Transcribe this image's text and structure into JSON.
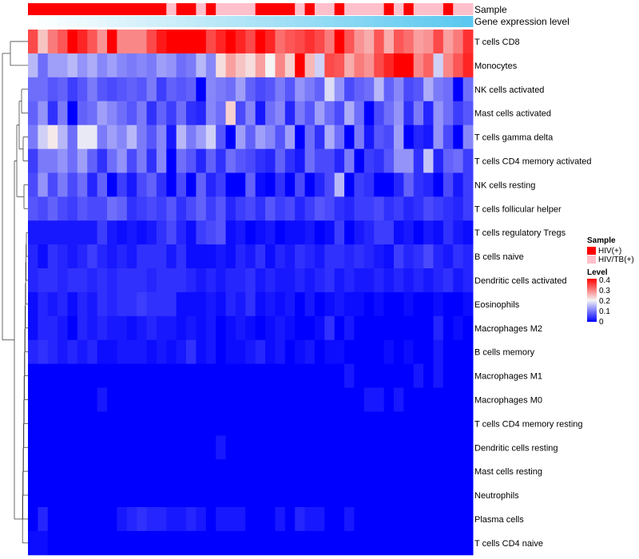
{
  "chart_data": {
    "type": "heatmap",
    "annotation_tracks": [
      "Sample",
      "Gene expression level"
    ],
    "rows": [
      "T cells CD8",
      "Monocytes",
      "NK cells activated",
      "Mast cells activated",
      "T cells gamma delta",
      "T cells CD4 memory activated",
      "NK cells resting",
      "T cells follicular helper",
      "T cells regulatory  Tregs",
      "B cells naive",
      "Dendritic cells activated",
      "Eosinophils",
      "Macrophages M2",
      "B cells memory",
      "Macrophages M1",
      "Macrophages M0",
      "T cells CD4 memory resting",
      "Dendritic cells resting",
      "Mast cells resting",
      "Neutrophils",
      "Plasma cells",
      "T cells CD4 naive"
    ],
    "n_samples": 45,
    "sample_groups": [
      "HIV(+)",
      "HIV(+)",
      "HIV(+)",
      "HIV(+)",
      "HIV(+)",
      "HIV(+)",
      "HIV(+)",
      "HIV(+)",
      "HIV(+)",
      "HIV(+)",
      "HIV(+)",
      "HIV(+)",
      "HIV(+)",
      "HIV(+)",
      "HIV/TB(+)",
      "HIV(+)",
      "HIV(+)",
      "HIV/TB(+)",
      "HIV(+)",
      "HIV/TB(+)",
      "HIV/TB(+)",
      "HIV/TB(+)",
      "HIV/TB(+)",
      "HIV(+)",
      "HIV(+)",
      "HIV(+)",
      "HIV(+)",
      "HIV/TB(+)",
      "HIV(+)",
      "HIV/TB(+)",
      "HIV/TB(+)",
      "HIV(+)",
      "HIV/TB(+)",
      "HIV/TB(+)",
      "HIV/TB(+)",
      "HIV/TB(+)",
      "HIV(+)",
      "HIV/TB(+)",
      "HIV(+)",
      "HIV/TB(+)",
      "HIV/TB(+)",
      "HIV/TB(+)",
      "HIV(+)",
      "HIV/TB(+)",
      "HIV/TB(+)"
    ],
    "gene_expression_range": [
      0,
      1
    ],
    "values": [
      [
        0.34,
        0.24,
        0.3,
        0.33,
        0.4,
        0.37,
        0.33,
        0.28,
        0.4,
        0.29,
        0.29,
        0.29,
        0.34,
        0.38,
        0.4,
        0.4,
        0.4,
        0.4,
        0.34,
        0.37,
        0.4,
        0.37,
        0.34,
        0.4,
        0.37,
        0.31,
        0.33,
        0.34,
        0.36,
        0.34,
        0.3,
        0.4,
        0.33,
        0.28,
        0.26,
        0.33,
        0.26,
        0.33,
        0.31,
        0.27,
        0.28,
        0.34,
        0.27,
        0.3,
        0.36
      ],
      [
        0.15,
        0.09,
        0.13,
        0.13,
        0.15,
        0.12,
        0.14,
        0.11,
        0.13,
        0.11,
        0.1,
        0.11,
        0.1,
        0.13,
        0.12,
        0.09,
        0.1,
        0.15,
        0.11,
        0.22,
        0.27,
        0.24,
        0.22,
        0.27,
        0.2,
        0.29,
        0.23,
        0.4,
        0.25,
        0.17,
        0.34,
        0.33,
        0.26,
        0.3,
        0.28,
        0.34,
        0.37,
        0.4,
        0.4,
        0.29,
        0.32,
        0.17,
        0.29,
        0.33,
        0.37
      ],
      [
        0.09,
        0.09,
        0.07,
        0.08,
        0.05,
        0.07,
        0.1,
        0.07,
        0.06,
        0.07,
        0.08,
        0.07,
        0.1,
        0.05,
        0.08,
        0.07,
        0.08,
        0.0,
        0.11,
        0.1,
        0.09,
        0.13,
        0.08,
        0.06,
        0.07,
        0.1,
        0.07,
        0.12,
        0.1,
        0.08,
        0.18,
        0.12,
        0.06,
        0.08,
        0.09,
        0.15,
        0.08,
        0.11,
        0.06,
        0.07,
        0.14,
        0.1,
        0.09,
        0.0,
        0.09
      ],
      [
        0.08,
        0.12,
        0.04,
        0.1,
        0.0,
        0.08,
        0.09,
        0.13,
        0.11,
        0.09,
        0.07,
        0.1,
        0.04,
        0.08,
        0.05,
        0.09,
        0.04,
        0.03,
        0.11,
        0.09,
        0.23,
        0.06,
        0.11,
        0.02,
        0.09,
        0.11,
        0.03,
        0.1,
        0.07,
        0.13,
        0.09,
        0.06,
        0.14,
        0.09,
        0.0,
        0.06,
        0.09,
        0.12,
        0.04,
        0.1,
        0.03,
        0.12,
        0.09,
        0.05,
        0.07
      ],
      [
        0.1,
        0.17,
        0.21,
        0.15,
        0.09,
        0.19,
        0.19,
        0.1,
        0.13,
        0.11,
        0.15,
        0.1,
        0.07,
        0.11,
        0.02,
        0.15,
        0.1,
        0.13,
        0.17,
        0.07,
        0.0,
        0.13,
        0.08,
        0.13,
        0.11,
        0.07,
        0.13,
        0.0,
        0.09,
        0.04,
        0.14,
        0.09,
        0.0,
        0.1,
        0.02,
        0.07,
        0.06,
        0.13,
        0.0,
        0.03,
        0.02,
        0.12,
        0.06,
        0.0,
        0.11
      ],
      [
        0.05,
        0.1,
        0.1,
        0.12,
        0.09,
        0.13,
        0.08,
        0.04,
        0.09,
        0.12,
        0.06,
        0.1,
        0.04,
        0.11,
        0.0,
        0.09,
        0.07,
        0.03,
        0.08,
        0.04,
        0.09,
        0.07,
        0.06,
        0.04,
        0.03,
        0.08,
        0.04,
        0.02,
        0.09,
        0.06,
        0.06,
        0.03,
        0.1,
        0.0,
        0.05,
        0.04,
        0.07,
        0.12,
        0.12,
        0.04,
        0.16,
        0.03,
        0.08,
        0.09,
        0.05
      ],
      [
        0.06,
        0.12,
        0.06,
        0.1,
        0.06,
        0.09,
        0.03,
        0.08,
        0.0,
        0.05,
        0.02,
        0.06,
        0.08,
        0.04,
        0.0,
        0.06,
        0.0,
        0.08,
        0.03,
        0.05,
        0.0,
        0.0,
        0.08,
        0.01,
        0.0,
        0.04,
        0.0,
        0.06,
        0.0,
        0.03,
        0.06,
        0.15,
        0.0,
        0.05,
        0.04,
        0.0,
        0.0,
        0.03,
        0.08,
        0.04,
        0.03,
        0.0,
        0.06,
        0.02,
        0.05
      ],
      [
        0.07,
        0.06,
        0.08,
        0.06,
        0.05,
        0.07,
        0.06,
        0.06,
        0.09,
        0.08,
        0.04,
        0.05,
        0.06,
        0.05,
        0.07,
        0.04,
        0.06,
        0.08,
        0.05,
        0.07,
        0.03,
        0.05,
        0.06,
        0.04,
        0.07,
        0.05,
        0.06,
        0.03,
        0.05,
        0.07,
        0.06,
        0.04,
        0.03,
        0.05,
        0.05,
        0.06,
        0.04,
        0.05,
        0.03,
        0.04,
        0.06,
        0.05,
        0.04,
        0.03,
        0.05
      ],
      [
        0.02,
        0.02,
        0.02,
        0.02,
        0.02,
        0.02,
        0.02,
        0.05,
        0.02,
        0.01,
        0.02,
        0.01,
        0.02,
        0.04,
        0.06,
        0.03,
        0.01,
        0.05,
        0.06,
        0.07,
        0.01,
        0.02,
        0.0,
        0.01,
        0.02,
        0.0,
        0.01,
        0.01,
        0.02,
        0.0,
        0.01,
        0.05,
        0.0,
        0.02,
        0.03,
        0.05,
        0.05,
        0.01,
        0.02,
        0.0,
        0.02,
        0.01,
        0.04,
        0.02,
        0.01
      ],
      [
        0.03,
        0.01,
        0.04,
        0.03,
        0.02,
        0.03,
        0.05,
        0.03,
        0.02,
        0.03,
        0.02,
        0.04,
        0.04,
        0.04,
        0.02,
        0.04,
        0.01,
        0.01,
        0.01,
        0.02,
        0.01,
        0.03,
        0.02,
        0.04,
        0.01,
        0.03,
        0.02,
        0.04,
        0.03,
        0.02,
        0.04,
        0.04,
        0.03,
        0.04,
        0.03,
        0.02,
        0.01,
        0.05,
        0.03,
        0.04,
        0.06,
        0.03,
        0.02,
        0.04,
        0.03
      ],
      [
        0.03,
        0.04,
        0.04,
        0.03,
        0.04,
        0.04,
        0.03,
        0.04,
        0.03,
        0.04,
        0.04,
        0.04,
        0.03,
        0.04,
        0.04,
        0.04,
        0.03,
        0.02,
        0.03,
        0.02,
        0.03,
        0.03,
        0.04,
        0.02,
        0.03,
        0.02,
        0.02,
        0.03,
        0.02,
        0.03,
        0.04,
        0.02,
        0.03,
        0.02,
        0.02,
        0.03,
        0.02,
        0.03,
        0.02,
        0.03,
        0.02,
        0.03,
        0.04,
        0.02,
        0.03
      ],
      [
        0.01,
        0.03,
        0.02,
        0.03,
        0.01,
        0.03,
        0.02,
        0.04,
        0.03,
        0.04,
        0.04,
        0.05,
        0.04,
        0.04,
        0.04,
        0.01,
        0.01,
        0.01,
        0.02,
        0.01,
        0.03,
        0.02,
        0.04,
        0.01,
        0.02,
        0.01,
        0.02,
        0.0,
        0.02,
        0.0,
        0.01,
        0.02,
        0.01,
        0.01,
        0.0,
        0.01,
        0.0,
        0.0,
        0.01,
        0.0,
        0.0,
        0.01,
        0.0,
        0.0,
        0.01
      ],
      [
        0.01,
        0.03,
        0.03,
        0.02,
        0.0,
        0.03,
        0.02,
        0.03,
        0.02,
        0.02,
        0.01,
        0.02,
        0.03,
        0.02,
        0.02,
        0.01,
        0.02,
        0.01,
        0.02,
        0.0,
        0.01,
        0.02,
        0.01,
        0.0,
        0.01,
        0.02,
        0.01,
        0.0,
        0.0,
        0.01,
        0.04,
        0.0,
        0.02,
        0.0,
        0.0,
        0.0,
        0.0,
        0.0,
        0.0,
        0.0,
        0.0,
        0.03,
        0.0,
        0.01,
        0.0
      ],
      [
        0.03,
        0.04,
        0.03,
        0.02,
        0.03,
        0.02,
        0.03,
        0.01,
        0.01,
        0.02,
        0.02,
        0.02,
        0.01,
        0.02,
        0.01,
        0.02,
        0.04,
        0.01,
        0.02,
        0.0,
        0.01,
        0.01,
        0.02,
        0.03,
        0.01,
        0.02,
        0.0,
        0.01,
        0.02,
        0.0,
        0.01,
        0.01,
        0.0,
        0.0,
        0.0,
        0.0,
        0.01,
        0.0,
        0.01,
        0.0,
        0.0,
        0.02,
        0.0,
        0.0,
        0.0
      ],
      [
        0,
        0,
        0,
        0,
        0,
        0,
        0,
        0,
        0,
        0,
        0,
        0,
        0,
        0,
        0,
        0,
        0,
        0,
        0,
        0,
        0,
        0,
        0,
        0,
        0,
        0,
        0,
        0,
        0,
        0,
        0,
        0,
        0.02,
        0,
        0,
        0,
        0,
        0,
        0,
        0.02,
        0,
        0.02,
        0,
        0,
        0
      ],
      [
        0,
        0,
        0,
        0,
        0,
        0,
        0,
        0.02,
        0,
        0,
        0,
        0,
        0,
        0,
        0,
        0,
        0,
        0,
        0,
        0,
        0,
        0,
        0,
        0,
        0,
        0,
        0,
        0,
        0,
        0,
        0,
        0,
        0,
        0,
        0.02,
        0.02,
        0,
        0.02,
        0,
        0,
        0,
        0,
        0,
        0,
        0
      ],
      [
        0,
        0,
        0,
        0,
        0,
        0,
        0,
        0,
        0,
        0,
        0,
        0,
        0,
        0,
        0,
        0,
        0,
        0,
        0,
        0,
        0,
        0,
        0,
        0,
        0,
        0,
        0,
        0,
        0,
        0,
        0,
        0,
        0,
        0,
        0,
        0,
        0,
        0,
        0,
        0,
        0,
        0,
        0,
        0,
        0
      ],
      [
        0,
        0,
        0,
        0,
        0,
        0,
        0,
        0,
        0,
        0,
        0,
        0,
        0,
        0,
        0,
        0,
        0,
        0,
        0,
        0.02,
        0,
        0,
        0,
        0,
        0,
        0,
        0,
        0,
        0,
        0,
        0,
        0,
        0,
        0,
        0,
        0,
        0,
        0,
        0,
        0,
        0,
        0,
        0,
        0,
        0
      ],
      [
        0,
        0,
        0,
        0,
        0,
        0,
        0,
        0,
        0,
        0,
        0,
        0,
        0,
        0,
        0,
        0,
        0,
        0,
        0,
        0,
        0,
        0,
        0,
        0,
        0,
        0,
        0,
        0,
        0,
        0,
        0,
        0,
        0,
        0,
        0,
        0,
        0,
        0,
        0,
        0,
        0,
        0,
        0,
        0,
        0
      ],
      [
        0,
        0,
        0,
        0,
        0,
        0,
        0,
        0,
        0,
        0,
        0,
        0,
        0,
        0,
        0,
        0,
        0,
        0,
        0,
        0,
        0,
        0,
        0,
        0,
        0,
        0,
        0,
        0,
        0,
        0,
        0,
        0,
        0,
        0,
        0,
        0,
        0,
        0,
        0,
        0,
        0,
        0,
        0,
        0,
        0
      ],
      [
        0.0,
        0.03,
        0.0,
        0.0,
        0.0,
        0.0,
        0.0,
        0.0,
        0.0,
        0.02,
        0.03,
        0.04,
        0.03,
        0.03,
        0.02,
        0.02,
        0.03,
        0.02,
        0.0,
        0.02,
        0.02,
        0.02,
        0.0,
        0.0,
        0.0,
        0.02,
        0.0,
        0.03,
        0.02,
        0.02,
        0.0,
        0.0,
        0.02,
        0.0,
        0.0,
        0.0,
        0.0,
        0.0,
        0.0,
        0.0,
        0.0,
        0.0,
        0.0,
        0.0,
        0.0
      ],
      [
        0.01,
        0.01,
        0,
        0,
        0,
        0,
        0,
        0,
        0,
        0,
        0,
        0,
        0,
        0,
        0,
        0,
        0,
        0,
        0,
        0,
        0,
        0,
        0,
        0,
        0,
        0,
        0,
        0,
        0,
        0,
        0,
        0,
        0,
        0,
        0,
        0,
        0,
        0,
        0,
        0,
        0,
        0,
        0,
        0,
        0
      ]
    ],
    "legend": {
      "sample": {
        "title": "Sample",
        "entries": [
          "HIV(+)",
          "HIV/TB(+)"
        ],
        "colors": [
          "#ff0000",
          "#ffc0cb"
        ]
      },
      "level": {
        "title": "Level",
        "ticks": [
          "0.4",
          "0.3",
          "0.2",
          "0.1",
          "0"
        ],
        "range": [
          0,
          0.4
        ]
      }
    },
    "colors": {
      "low": "#0000ff",
      "mid": "#f5f5f5",
      "high": "#ff0000",
      "expr_low": "#ffffff",
      "expr_high": "#5bc8ef"
    }
  }
}
